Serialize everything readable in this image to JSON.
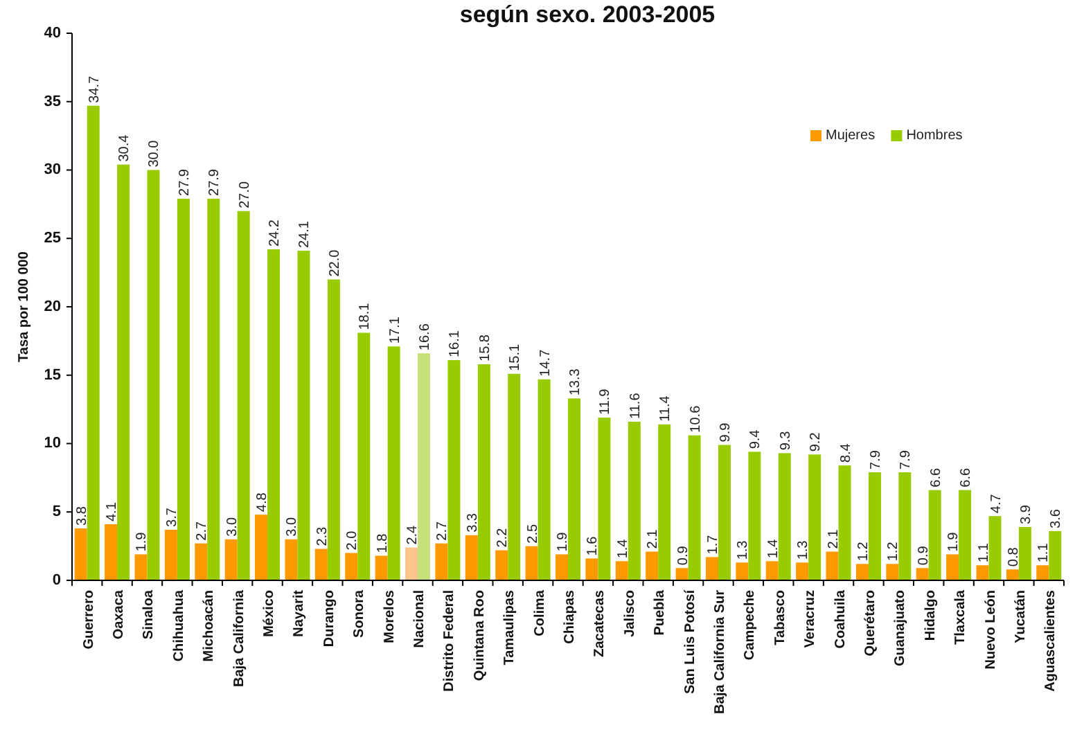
{
  "chart_data": {
    "type": "bar",
    "title": "según sexo. 2003-2005",
    "ylabel": "Tasa por 100 000",
    "categories": [
      "Guerrero",
      "Oaxaca",
      "Sinaloa",
      "Chihuahua",
      "Michoacán",
      "Baja California",
      "México",
      "Nayarit",
      "Durango",
      "Sonora",
      "Morelos",
      "Nacional",
      "Distrito Federal",
      "Quintana Roo",
      "Tamaulipas",
      "Colima",
      "Chiapas",
      "Zacatecas",
      "Jalisco",
      "Puebla",
      "San Luis Potosí",
      "Baja California Sur",
      "Campeche",
      "Tabasco",
      "Veracruz",
      "Coahuila",
      "Querétaro",
      "Guanajuato",
      "Hidalgo",
      "Tlaxcala",
      "Nuevo León",
      "Yucatán",
      "Aguascalientes"
    ],
    "series": [
      {
        "name": "Mujeres",
        "color": "#ff9900",
        "colors": [
          null,
          null,
          null,
          null,
          null,
          null,
          null,
          null,
          null,
          null,
          null,
          "#fbc48a",
          null,
          null,
          null,
          null,
          null,
          null,
          null,
          null,
          null,
          null,
          null,
          null,
          null,
          null,
          null,
          null,
          null,
          null,
          null,
          null,
          null
        ],
        "values": [
          3.8,
          4.1,
          1.9,
          3.7,
          2.7,
          3.0,
          4.8,
          3.0,
          2.3,
          2.0,
          1.8,
          2.4,
          2.7,
          3.3,
          2.2,
          2.5,
          1.9,
          1.6,
          1.4,
          2.1,
          0.9,
          1.7,
          1.3,
          1.4,
          1.3,
          2.1,
          1.2,
          1.2,
          0.9,
          1.9,
          1.1,
          0.8,
          1.1
        ],
        "value_labels": [
          "3.8",
          "4.1",
          "1.9",
          "3.7",
          "2.7",
          "3.0",
          "4.8",
          "3.0",
          "2.3",
          "2.0",
          "1.8",
          "2.4",
          "2.7",
          "3.3",
          "2.2",
          "2.5",
          "1.9",
          "1.6",
          "1.4",
          "2.1",
          "0.9",
          "1.7",
          "1.3",
          "1.4",
          "1.3",
          "2.1",
          "1.2",
          "1.2",
          "0.9",
          "1.9",
          "1.1",
          "0.8",
          "1.1"
        ]
      },
      {
        "name": "Hombres",
        "color": "#99cc00",
        "colors": [
          null,
          null,
          null,
          null,
          null,
          null,
          null,
          null,
          null,
          null,
          null,
          "#c6e07a",
          null,
          null,
          null,
          null,
          null,
          null,
          null,
          null,
          null,
          null,
          null,
          null,
          null,
          null,
          null,
          null,
          null,
          null,
          null,
          null,
          null
        ],
        "values": [
          34.7,
          30.4,
          30.0,
          27.9,
          27.9,
          27.0,
          24.2,
          24.1,
          22.0,
          18.1,
          17.1,
          16.6,
          16.1,
          15.8,
          15.1,
          14.7,
          13.3,
          11.9,
          11.6,
          11.4,
          10.6,
          9.9,
          9.4,
          9.3,
          9.2,
          8.4,
          7.9,
          7.9,
          6.6,
          6.6,
          4.7,
          3.9,
          3.6
        ],
        "value_labels": [
          "34.7",
          "30.4",
          "30.0",
          "27.9",
          "27.9",
          "27.0",
          "24.2",
          "24.1",
          "22.0",
          "18.1",
          "17.1",
          "16.6",
          "16.1",
          "15.8",
          "15.1",
          "14.7",
          "13.3",
          "11.9",
          "11.6",
          "11.4",
          "10.6",
          "9.9",
          "9.4",
          "9.3",
          "9.2",
          "8.4",
          "7.9",
          "7.9",
          "6.6",
          "6.6",
          "4.7",
          "3.9",
          "3.6"
        ]
      }
    ],
    "ylim": [
      0,
      40
    ],
    "yticks": [
      0,
      5,
      10,
      15,
      20,
      25,
      30,
      35,
      40
    ],
    "grid": false,
    "legend": "top right"
  }
}
